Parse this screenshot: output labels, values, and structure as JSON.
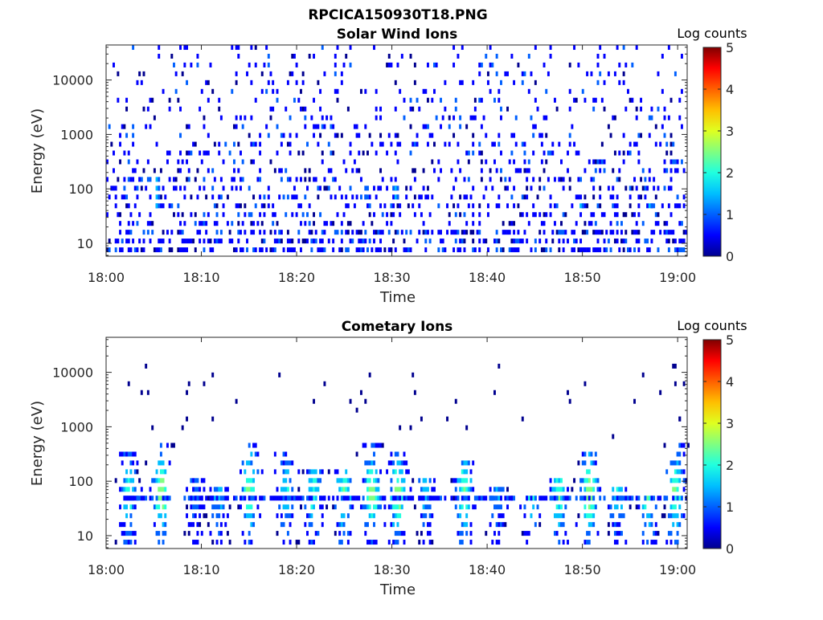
{
  "figure": {
    "title": "RPCICA150930T18.PNG"
  },
  "colormap": [
    "#00008f",
    "#0000ff",
    "#0060ff",
    "#00bfff",
    "#20ffdf",
    "#80ff80",
    "#dfff20",
    "#ffbf00",
    "#ff6000",
    "#ff0000",
    "#800000"
  ],
  "chart_data": [
    {
      "type": "heatmap",
      "title": "Solar Wind Ions",
      "xlabel": "Time",
      "ylabel": "Energy (eV)",
      "x_ticks": [
        "18:00",
        "18:10",
        "18:20",
        "18:30",
        "18:40",
        "18:50",
        "19:00"
      ],
      "x_range": [
        "18:00",
        "19:01"
      ],
      "y_ticks": [
        "10",
        "100",
        "1000",
        "10000"
      ],
      "y_scale": "log",
      "ylim": [
        5.8,
        44000
      ],
      "colorbar": {
        "label": "Log counts",
        "ticks": [
          "0",
          "1",
          "2",
          "3",
          "4",
          "5"
        ],
        "range": [
          0,
          5
        ]
      },
      "pattern": "sparse",
      "value_range": [
        0,
        1.8
      ],
      "features": [
        {
          "t_min": 5.3,
          "log_e_low": 1.5,
          "log_e_high": 2.2,
          "value": 1.5
        },
        {
          "t_min": 49.7,
          "log_e_low": 1.5,
          "log_e_high": 1.8,
          "value": 1.6
        },
        {
          "t_min": 57.0,
          "log_e_low": 1.5,
          "log_e_high": 1.7,
          "value": 1.6
        },
        {
          "t_min": 27.0,
          "log_e_low": 1.8,
          "log_e_high": 2.1,
          "value": 1.2
        },
        {
          "t_min": 30.3,
          "log_e_low": 1.8,
          "log_e_high": 2.1,
          "value": 1.3
        }
      ]
    },
    {
      "type": "heatmap",
      "title": "Cometary Ions",
      "xlabel": "Time",
      "ylabel": "Energy (eV)",
      "x_ticks": [
        "18:00",
        "18:10",
        "18:20",
        "18:30",
        "18:40",
        "18:50",
        "19:00"
      ],
      "x_range": [
        "18:00",
        "19:01"
      ],
      "y_ticks": [
        "10",
        "100",
        "1000",
        "10000"
      ],
      "y_scale": "log",
      "ylim": [
        5.8,
        44000
      ],
      "colorbar": {
        "label": "Log counts",
        "ticks": [
          "0",
          "1",
          "2",
          "3",
          "4",
          "5"
        ],
        "range": [
          0,
          5
        ]
      },
      "pattern": "bursts",
      "value_range": [
        0,
        2.7
      ],
      "bursts": [
        {
          "t_min": 2.3,
          "log_e_top": 2.6,
          "peak": 1.9
        },
        {
          "t_min": 5.7,
          "log_e_top": 2.7,
          "peak": 2.6
        },
        {
          "t_min": 9.3,
          "log_e_top": 2.0,
          "peak": 1.0
        },
        {
          "t_min": 11.7,
          "log_e_top": 1.9,
          "peak": 1.6
        },
        {
          "t_min": 15.0,
          "log_e_top": 2.7,
          "peak": 2.3
        },
        {
          "t_min": 18.8,
          "log_e_top": 2.5,
          "peak": 1.7
        },
        {
          "t_min": 21.8,
          "log_e_top": 2.2,
          "peak": 2.0
        },
        {
          "t_min": 24.8,
          "log_e_top": 2.2,
          "peak": 2.2
        },
        {
          "t_min": 27.8,
          "log_e_top": 2.7,
          "peak": 2.5
        },
        {
          "t_min": 30.4,
          "log_e_top": 2.6,
          "peak": 2.5
        },
        {
          "t_min": 33.5,
          "log_e_top": 2.1,
          "peak": 1.4
        },
        {
          "t_min": 37.6,
          "log_e_top": 2.4,
          "peak": 2.3
        },
        {
          "t_min": 40.9,
          "log_e_top": 1.9,
          "peak": 1.3
        },
        {
          "t_min": 44.5,
          "log_e_top": 1.7,
          "peak": 2.0
        },
        {
          "t_min": 47.4,
          "log_e_top": 2.1,
          "peak": 2.1
        },
        {
          "t_min": 50.5,
          "log_e_top": 2.5,
          "peak": 2.6
        },
        {
          "t_min": 53.6,
          "log_e_top": 1.9,
          "peak": 1.6
        },
        {
          "t_min": 56.8,
          "log_e_top": 1.7,
          "peak": 2.3
        },
        {
          "t_min": 59.6,
          "log_e_top": 2.7,
          "peak": 2.4
        }
      ]
    }
  ]
}
